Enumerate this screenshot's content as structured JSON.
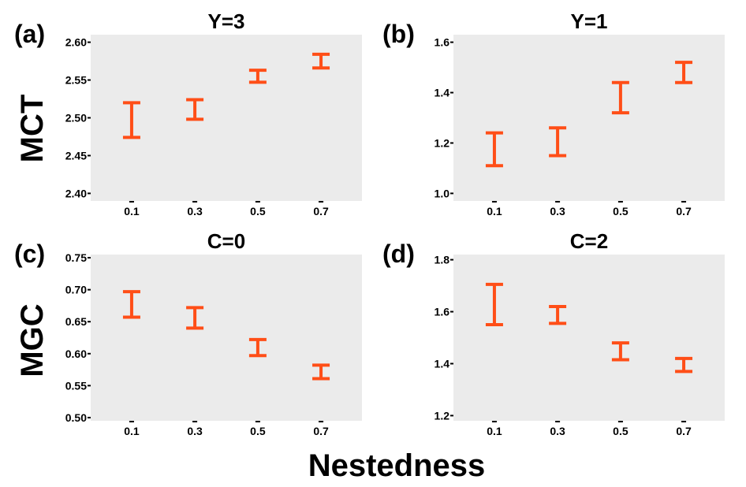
{
  "figure": {
    "xlabel": "Nestedness",
    "row_labels": [
      "MCT",
      "MGC"
    ],
    "bar_color": "#FF4E17",
    "panel_bg": "#EBEBEB"
  },
  "chart_data": [
    {
      "type": "errorbar",
      "panel": "(a)",
      "title": "Y=3",
      "ylabel": "MCT",
      "xlabel": "Nestedness",
      "categories": [
        "0.1",
        "0.3",
        "0.5",
        "0.7"
      ],
      "ylim": [
        2.39,
        2.61
      ],
      "yticks": [
        2.4,
        2.45,
        2.5,
        2.55,
        2.6
      ],
      "ytick_labels": [
        "2.40",
        "2.45",
        "2.50",
        "2.55",
        "2.60"
      ],
      "lower": [
        2.474,
        2.498,
        2.547,
        2.566
      ],
      "upper": [
        2.52,
        2.524,
        2.563,
        2.584
      ]
    },
    {
      "type": "errorbar",
      "panel": "(b)",
      "title": "Y=1",
      "ylabel": "MCT",
      "xlabel": "Nestedness",
      "categories": [
        "0.1",
        "0.3",
        "0.5",
        "0.7"
      ],
      "ylim": [
        0.97,
        1.63
      ],
      "yticks": [
        1.0,
        1.2,
        1.4,
        1.6
      ],
      "ytick_labels": [
        "1.0",
        "1.2",
        "1.4",
        "1.6"
      ],
      "lower": [
        1.11,
        1.15,
        1.32,
        1.44
      ],
      "upper": [
        1.24,
        1.26,
        1.44,
        1.52
      ]
    },
    {
      "type": "errorbar",
      "panel": "(c)",
      "title": "C=0",
      "ylabel": "MGC",
      "xlabel": "Nestedness",
      "categories": [
        "0.1",
        "0.3",
        "0.5",
        "0.7"
      ],
      "ylim": [
        0.495,
        0.755
      ],
      "yticks": [
        0.5,
        0.55,
        0.6,
        0.65,
        0.7,
        0.75
      ],
      "ytick_labels": [
        "0.50",
        "0.55",
        "0.60",
        "0.65",
        "0.70",
        "0.75"
      ],
      "lower": [
        0.657,
        0.64,
        0.597,
        0.561
      ],
      "upper": [
        0.697,
        0.672,
        0.622,
        0.582
      ]
    },
    {
      "type": "errorbar",
      "panel": "(d)",
      "title": "C=2",
      "ylabel": "MGC",
      "xlabel": "Nestedness",
      "categories": [
        "0.1",
        "0.3",
        "0.5",
        "0.7"
      ],
      "ylim": [
        1.18,
        1.82
      ],
      "yticks": [
        1.2,
        1.4,
        1.6,
        1.8
      ],
      "ytick_labels": [
        "1.2",
        "1.4",
        "1.6",
        "1.8"
      ],
      "lower": [
        1.55,
        1.555,
        1.415,
        1.37
      ],
      "upper": [
        1.705,
        1.62,
        1.48,
        1.42
      ]
    }
  ]
}
